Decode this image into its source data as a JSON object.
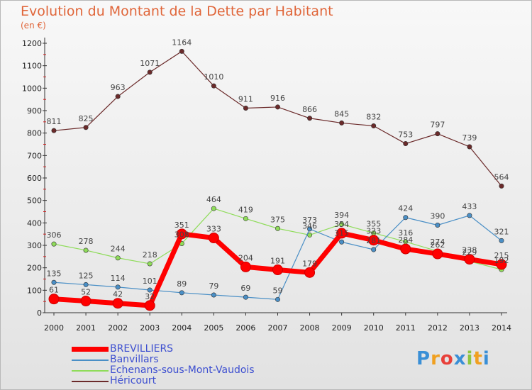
{
  "chart_data": {
    "type": "line",
    "title": "Evolution du Montant de la Dette par Habitant",
    "subtitle": "(en €)",
    "x": [
      "2000",
      "2001",
      "2002",
      "2003",
      "2004",
      "2005",
      "2006",
      "2007",
      "2008",
      "2009",
      "2010",
      "2011",
      "2012",
      "2013",
      "2014"
    ],
    "ylim": [
      0,
      1200
    ],
    "yticks": [
      0,
      100,
      200,
      300,
      400,
      500,
      600,
      700,
      800,
      900,
      1000,
      1100,
      1200
    ],
    "grid": false,
    "legend_position": "bottom-left",
    "series": [
      {
        "name": "BREVILLIERS",
        "color": "#ff0000",
        "values": [
          61,
          52,
          42,
          32,
          351,
          333,
          204,
          191,
          179,
          354,
          323,
          284,
          262,
          238,
          215
        ]
      },
      {
        "name": "Banvillars",
        "color": "#4a8fc6",
        "values": [
          135,
          125,
          114,
          101,
          89,
          79,
          69,
          59,
          373,
          315,
          281,
          424,
          390,
          433,
          321
        ]
      },
      {
        "name": "Echenans-sous-Mont-Vaudois",
        "color": "#8fdc5a",
        "values": [
          306,
          278,
          244,
          218,
          308,
          464,
          419,
          375,
          346,
          394,
          355,
          316,
          274,
          229,
          192
        ]
      },
      {
        "name": "Héricourt",
        "color": "#6b2a2a",
        "values": [
          811,
          825,
          963,
          1071,
          1164,
          1010,
          911,
          916,
          866,
          845,
          832,
          753,
          797,
          739,
          564
        ]
      }
    ]
  },
  "branding": {
    "logo_letters": [
      "P",
      "r",
      "o",
      "x",
      "i",
      "t",
      "i"
    ],
    "logo_colors": [
      "#3a8fd6",
      "#f0a020",
      "#e8403a",
      "#3a8fd6",
      "#8ec63f",
      "#f0a020",
      "#3a8fd6"
    ]
  }
}
